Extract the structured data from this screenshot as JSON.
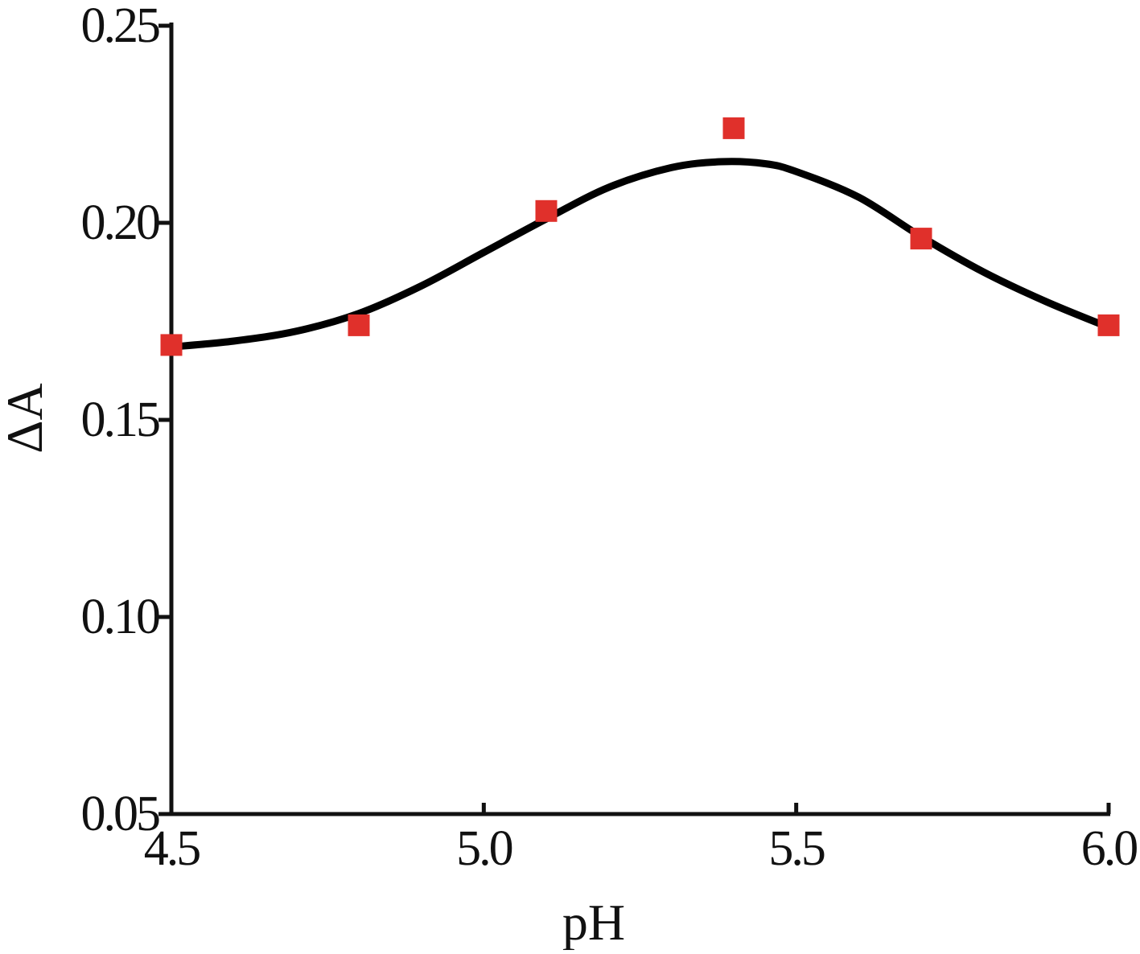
{
  "chart_data": {
    "type": "scatter",
    "title": "",
    "xlabel": "pH",
    "ylabel": "ΔA",
    "xlim": [
      4.5,
      6.0
    ],
    "ylim": [
      0.05,
      0.25
    ],
    "xticks": [
      4.5,
      5.0,
      5.5,
      6.0
    ],
    "xtick_labels": [
      "4.5",
      "5.0",
      "5.5",
      "6.0"
    ],
    "yticks": [
      0.05,
      0.1,
      0.15,
      0.2,
      0.25
    ],
    "ytick_labels": [
      "0.05",
      "0.10",
      "0.15",
      "0.20",
      "0.25"
    ],
    "grid": false,
    "legend": "none",
    "series": [
      {
        "kind": "points",
        "marker": "square",
        "color": "#e0302b",
        "x": [
          4.5,
          4.8,
          5.1,
          5.4,
          5.7,
          6.0
        ],
        "y": [
          0.169,
          0.174,
          0.203,
          0.224,
          0.196,
          0.174
        ]
      },
      {
        "kind": "fit-line",
        "color": "#000000",
        "x": [
          4.5,
          4.6,
          4.7,
          4.8,
          4.9,
          5.0,
          5.1,
          5.2,
          5.3,
          5.38,
          5.45,
          5.5,
          5.6,
          5.7,
          5.8,
          5.9,
          6.0
        ],
        "y": [
          0.1685,
          0.17,
          0.1725,
          0.177,
          0.184,
          0.1925,
          0.201,
          0.209,
          0.214,
          0.2155,
          0.215,
          0.213,
          0.2065,
          0.1965,
          0.1875,
          0.18,
          0.1735
        ]
      }
    ]
  }
}
